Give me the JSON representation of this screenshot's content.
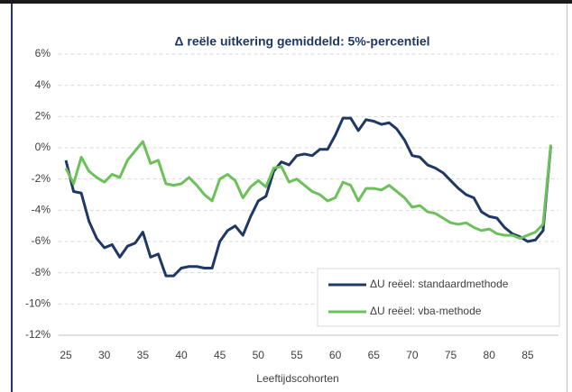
{
  "chart_data": {
    "type": "line",
    "title": "Δ reële uitkering gemiddeld: 5%-percentiel",
    "xlabel": "Leeftijdscohorten",
    "x": [
      25,
      26,
      27,
      28,
      29,
      30,
      31,
      32,
      33,
      34,
      35,
      36,
      37,
      38,
      39,
      40,
      41,
      42,
      43,
      44,
      45,
      46,
      47,
      48,
      49,
      50,
      51,
      52,
      53,
      54,
      55,
      56,
      57,
      58,
      59,
      60,
      61,
      62,
      63,
      64,
      65,
      66,
      67,
      68,
      69,
      70,
      71,
      72,
      73,
      74,
      75,
      76,
      77,
      78,
      79,
      80,
      81,
      82,
      83,
      84,
      85,
      86,
      87,
      88
    ],
    "series": [
      {
        "name": "ΔU reëel: standaardmethode",
        "color": "#1f3864",
        "values": [
          -0.8,
          -2.8,
          -2.9,
          -4.7,
          -5.8,
          -6.4,
          -6.2,
          -7.0,
          -6.3,
          -6.1,
          -5.4,
          -7.0,
          -6.8,
          -8.2,
          -8.2,
          -7.7,
          -7.6,
          -7.6,
          -7.7,
          -7.7,
          -6.0,
          -5.3,
          -5.0,
          -5.6,
          -4.4,
          -3.4,
          -3.1,
          -1.5,
          -0.9,
          -1.1,
          -0.5,
          -0.4,
          -0.5,
          -0.1,
          -0.1,
          0.8,
          1.9,
          1.9,
          1.1,
          1.8,
          1.7,
          1.5,
          1.6,
          1.2,
          0.5,
          -0.5,
          -0.6,
          -1.1,
          -1.3,
          -1.6,
          -2.1,
          -2.6,
          -3.0,
          -3.2,
          -4.1,
          -4.4,
          -4.5,
          -5.1,
          -5.5,
          -5.7,
          -6.0,
          -5.9,
          -5.3,
          0.1
        ]
      },
      {
        "name": "ΔU reëel: vba-methode",
        "color": "#6dc15b",
        "values": [
          -1.3,
          -2.3,
          -0.6,
          -1.5,
          -1.9,
          -2.2,
          -1.7,
          -1.9,
          -0.8,
          -0.2,
          0.4,
          -1.0,
          -0.8,
          -2.3,
          -2.4,
          -2.3,
          -1.9,
          -2.4,
          -3.0,
          -3.4,
          -2.0,
          -1.7,
          -2.1,
          -3.2,
          -2.5,
          -2.1,
          -2.5,
          -1.3,
          -1.2,
          -2.2,
          -2.0,
          -2.4,
          -2.8,
          -3.0,
          -3.4,
          -3.2,
          -2.2,
          -2.4,
          -3.4,
          -2.6,
          -2.6,
          -2.7,
          -2.4,
          -2.8,
          -3.2,
          -3.8,
          -3.7,
          -4.1,
          -4.2,
          -4.5,
          -4.8,
          -4.9,
          -4.8,
          -5.1,
          -5.3,
          -5.2,
          -5.5,
          -5.6,
          -5.6,
          -5.8,
          -5.6,
          -5.4,
          -4.9,
          0.2
        ]
      }
    ],
    "xlim": [
      24,
      89
    ],
    "xticks": [
      25,
      30,
      35,
      40,
      45,
      50,
      55,
      60,
      65,
      70,
      75,
      80,
      85
    ],
    "ylim": [
      -12,
      6
    ],
    "yticks": [
      {
        "value": -12,
        "label": "-12%"
      },
      {
        "value": -10,
        "label": "-10%"
      },
      {
        "value": -8,
        "label": "-8%"
      },
      {
        "value": -6,
        "label": "-6%"
      },
      {
        "value": -4,
        "label": "-4%"
      },
      {
        "value": -2,
        "label": "-2%"
      },
      {
        "value": 0,
        "label": "0%"
      },
      {
        "value": 2,
        "label": "2%"
      },
      {
        "value": 4,
        "label": "4%"
      },
      {
        "value": 6,
        "label": "6%"
      }
    ],
    "grid": true,
    "legend": "lower right"
  }
}
